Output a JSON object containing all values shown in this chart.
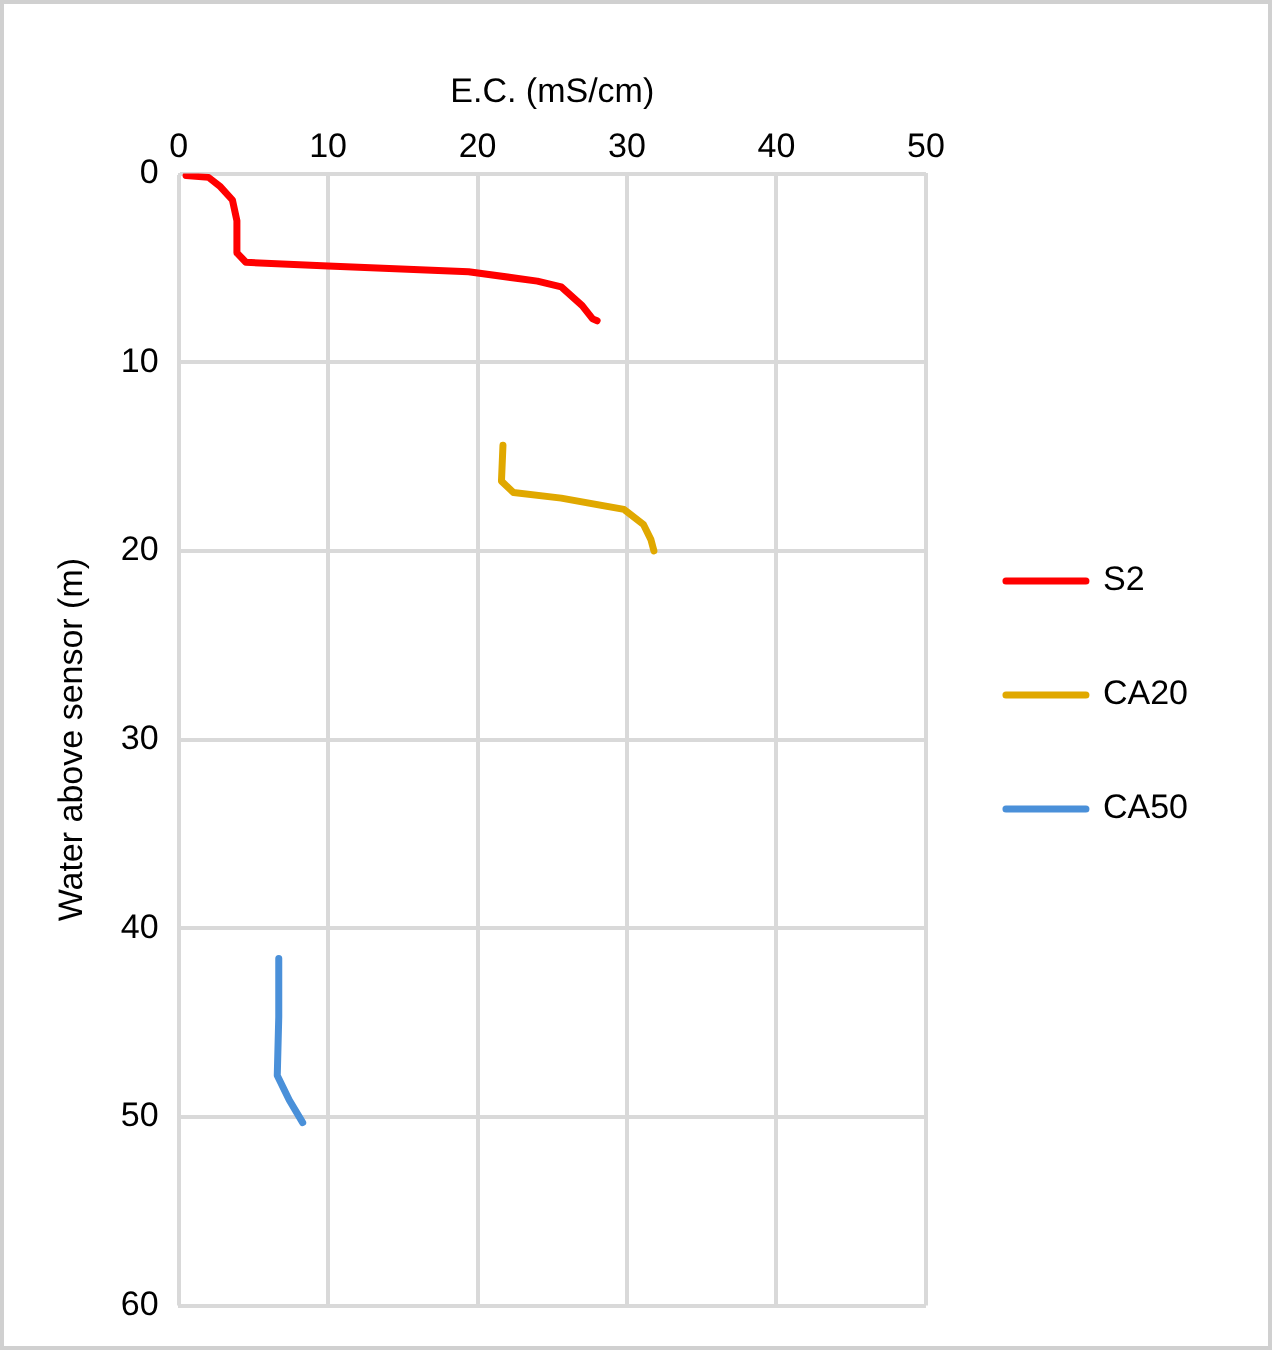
{
  "chart_data": {
    "type": "line",
    "xlabel": "E.C. (mS/cm)",
    "ylabel": "Water above sensor (m)",
    "xlim": [
      0,
      50
    ],
    "xticks": [
      0,
      10,
      20,
      30,
      40,
      50
    ],
    "ylim": [
      60,
      0
    ],
    "yticks": [
      0,
      10,
      20,
      30,
      40,
      50,
      60
    ],
    "grid": true,
    "legend": "right",
    "marker": "none",
    "series": [
      {
        "name": "S2",
        "color": "#ff0000",
        "x": [
          0.5,
          2,
          2.8,
          3.6,
          3.9,
          3.9,
          4.5,
          10,
          19.4,
          24,
          25.6,
          27,
          27.7,
          28
        ],
        "values": [
          0.1,
          0.2,
          0.7,
          1.4,
          2.5,
          4.2,
          4.7,
          4.9,
          5.2,
          5.7,
          6.0,
          7.0,
          7.7,
          7.8
        ]
      },
      {
        "name": "CA20",
        "color": "#e0a800",
        "x": [
          21.7,
          21.6,
          22.4,
          25.6,
          29.8,
          31.1,
          31.6,
          31.8
        ],
        "values": [
          14.4,
          16.3,
          16.9,
          17.2,
          17.8,
          18.6,
          19.4,
          20.0
        ]
      },
      {
        "name": "CA50",
        "color": "#4a90d9",
        "x": [
          6.7,
          6.7,
          6.6,
          7.4,
          8.3
        ],
        "values": [
          41.6,
          44.7,
          47.8,
          49.1,
          50.3
        ]
      }
    ]
  }
}
